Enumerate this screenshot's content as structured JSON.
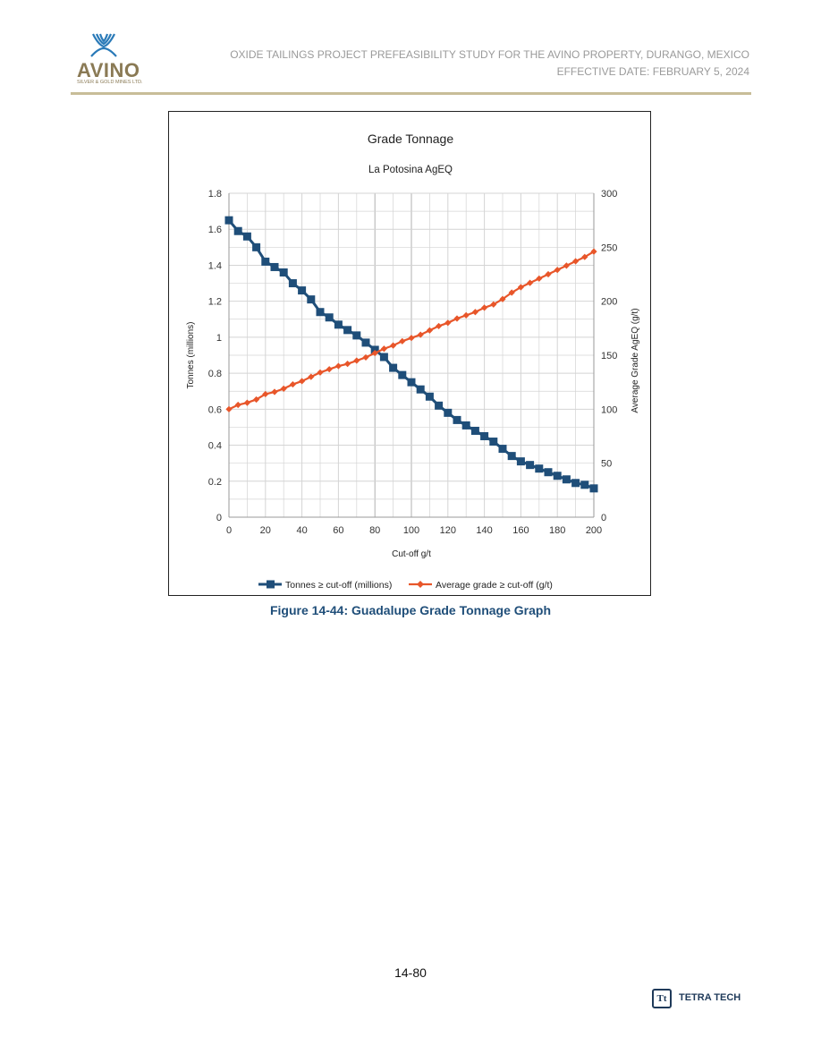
{
  "header": {
    "logo_name": "AVINO",
    "logo_subtitle": "SILVER & GOLD MINES LTD.",
    "title_line1": "OXIDE TAILINGS PROJECT PREFEASIBILITY STUDY FOR THE AVINO PROPERTY, DURANGO, MEXICO",
    "title_line2": "EFFECTIVE DATE: FEBRUARY 5, 2024"
  },
  "figure": {
    "caption": "Figure 14-44: Guadalupe Grade Tonnage Graph"
  },
  "footer": {
    "page_number": "14-80",
    "company": "TETRA TECH",
    "company_mark": "Tt"
  },
  "colors": {
    "tonnes": "#1f4e79",
    "grade": "#e8562a",
    "grid": "#d4d4d4",
    "grid_major": "#b0b0b0",
    "brand": "#8a7a55",
    "caption": "#1f4e79"
  },
  "chart_data": {
    "type": "line",
    "title": "Grade Tonnage",
    "subtitle": "La Potosina AgEQ",
    "xlabel": "Cut-off g/t",
    "ylabel": "Tonnes (millions)",
    "y2label": "Average Grade AgEQ (g/t)",
    "xlim": [
      0,
      200
    ],
    "ylim": [
      0,
      1.8
    ],
    "y2lim": [
      0,
      300
    ],
    "x_ticks": [
      "0",
      "20",
      "40",
      "60",
      "80",
      "100",
      "120",
      "140",
      "160",
      "180",
      "200"
    ],
    "y_ticks": [
      "0",
      "0.2",
      "0.4",
      "0.6",
      "0.8",
      "1",
      "1.2",
      "1.4",
      "1.6",
      "1.8"
    ],
    "y2_ticks": [
      "0",
      "50",
      "100",
      "150",
      "200",
      "250",
      "300"
    ],
    "grid": true,
    "legend_position": "bottom",
    "x": [
      0,
      5,
      10,
      15,
      20,
      25,
      30,
      35,
      40,
      45,
      50,
      55,
      60,
      65,
      70,
      75,
      80,
      85,
      90,
      95,
      100,
      105,
      110,
      115,
      120,
      125,
      130,
      135,
      140,
      145,
      150,
      155,
      160,
      165,
      170,
      175,
      180,
      185,
      190,
      195,
      200
    ],
    "series": [
      {
        "name": "Tonnes ≥ cut-off (millions)",
        "axis": "left",
        "marker": "square",
        "values": [
          1.65,
          1.59,
          1.56,
          1.5,
          1.42,
          1.39,
          1.36,
          1.3,
          1.26,
          1.21,
          1.14,
          1.11,
          1.07,
          1.04,
          1.01,
          0.97,
          0.93,
          0.89,
          0.83,
          0.79,
          0.75,
          0.71,
          0.67,
          0.62,
          0.58,
          0.54,
          0.51,
          0.48,
          0.45,
          0.42,
          0.38,
          0.34,
          0.31,
          0.29,
          0.27,
          0.25,
          0.23,
          0.21,
          0.19,
          0.18,
          0.16
        ]
      },
      {
        "name": "Average grade ≥ cut-off (g/t)",
        "axis": "right",
        "marker": "diamond",
        "values": [
          100,
          104,
          106,
          109,
          114,
          116,
          119,
          123,
          126,
          130,
          134,
          137,
          140,
          142,
          145,
          148,
          152,
          156,
          159,
          163,
          166,
          169,
          173,
          177,
          180,
          184,
          187,
          190,
          194,
          197,
          202,
          208,
          213,
          217,
          221,
          225,
          229,
          233,
          237,
          241,
          246
        ]
      }
    ]
  }
}
